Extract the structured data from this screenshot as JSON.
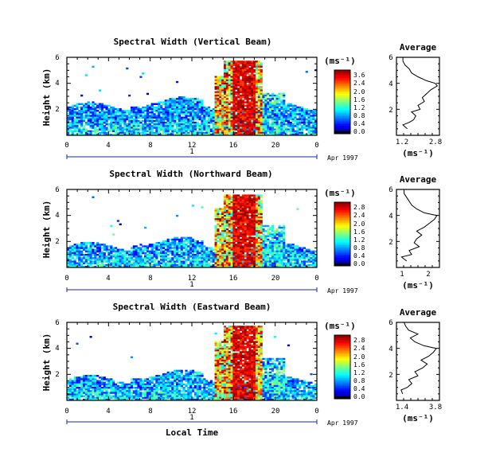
{
  "chart_data": [
    {
      "type": "heatmap",
      "title": "Spectral Width (Vertical Beam)",
      "ylabel": "Height (km)",
      "xticks": [
        "0",
        "4",
        "8",
        "12",
        "16",
        "20",
        "0"
      ],
      "yticks": [
        "6",
        "4",
        "2"
      ],
      "xlim": [
        0,
        24
      ],
      "ylim": [
        0,
        6
      ],
      "date_index": "1",
      "date_label": "Apr 1997",
      "colorbar": {
        "unit": "(ms⁻¹)",
        "ticks": [
          "3.6",
          "2.4",
          "2.0",
          "1.6",
          "1.2",
          "0.8",
          "0.4",
          "0.0"
        ],
        "range": [
          0.0,
          3.6
        ]
      },
      "average": {
        "title": "Average",
        "xlabel": "(ms⁻¹)",
        "xticks": [
          "1.2",
          "2.8"
        ],
        "yticks": [
          "6",
          "4",
          "2"
        ],
        "xlim": [
          1.0,
          3.0
        ],
        "ylim": [
          0,
          6
        ],
        "profile": {
          "height": [
            0.5,
            0.8,
            1.0,
            1.2,
            1.5,
            1.8,
            2.0,
            2.3,
            2.6,
            2.9,
            3.2,
            3.5,
            3.8,
            4.0,
            4.2,
            4.5,
            4.8,
            5.1,
            5.4,
            5.7,
            6.0
          ],
          "value": [
            1.5,
            1.3,
            1.6,
            1.8,
            1.9,
            1.7,
            2.1,
            2.0,
            2.3,
            2.2,
            2.4,
            2.6,
            2.9,
            2.8,
            2.4,
            2.0,
            1.7,
            1.6,
            1.4,
            1.3,
            1.3
          ]
        }
      }
    },
    {
      "type": "heatmap",
      "title": "Spectral Width (Northward Beam)",
      "ylabel": "Height (km)",
      "xticks": [
        "0",
        "4",
        "8",
        "12",
        "16",
        "20",
        "0"
      ],
      "yticks": [
        "6",
        "4",
        "2"
      ],
      "xlim": [
        0,
        24
      ],
      "ylim": [
        0,
        6
      ],
      "date_index": "1",
      "date_label": "Apr 1997",
      "colorbar": {
        "unit": "(ms⁻¹)",
        "ticks": [
          "2.8",
          "2.4",
          "2.0",
          "1.6",
          "1.2",
          "0.8",
          "0.4",
          "0.0"
        ],
        "range": [
          0.0,
          2.8
        ]
      },
      "average": {
        "title": "Average",
        "xlabel": "(ms⁻¹)",
        "xticks": [
          "1",
          "2"
        ],
        "yticks": [
          "6",
          "4",
          "2"
        ],
        "xlim": [
          0.8,
          2.5
        ],
        "ylim": [
          0,
          6
        ],
        "profile": {
          "height": [
            0.5,
            0.8,
            1.0,
            1.3,
            1.6,
            1.9,
            2.2,
            2.5,
            2.8,
            3.1,
            3.4,
            3.7,
            4.0,
            4.2,
            4.5,
            4.8,
            5.1,
            5.4,
            5.7,
            6.0
          ],
          "value": [
            1.2,
            1.0,
            1.4,
            1.3,
            1.7,
            1.5,
            1.6,
            1.8,
            1.6,
            1.9,
            2.1,
            2.3,
            2.4,
            1.9,
            1.6,
            1.4,
            1.3,
            1.2,
            1.1,
            1.1
          ]
        }
      }
    },
    {
      "type": "heatmap",
      "title": "Spectral Width (Eastward Beam)",
      "ylabel": "Height (km)",
      "xlabel": "Local Time",
      "xticks": [
        "0",
        "4",
        "8",
        "12",
        "16",
        "20",
        "0"
      ],
      "yticks": [
        "6",
        "4",
        "2"
      ],
      "xlim": [
        0,
        24
      ],
      "ylim": [
        0,
        6
      ],
      "date_index": "1",
      "date_label": "Apr 1997",
      "colorbar": {
        "unit": "(ms⁻¹)",
        "ticks": [
          "2.8",
          "2.4",
          "2.0",
          "1.6",
          "1.2",
          "0.8",
          "0.4",
          "0.0"
        ],
        "range": [
          0.0,
          2.8
        ]
      },
      "average": {
        "title": "Average",
        "xlabel": "(ms⁻¹)",
        "xticks": [
          "1.4",
          "3.8"
        ],
        "yticks": [
          "6",
          "4",
          "2"
        ],
        "xlim": [
          1.2,
          4.0
        ],
        "ylim": [
          0,
          6
        ],
        "profile": {
          "height": [
            0.5,
            0.8,
            1.0,
            1.3,
            1.6,
            1.9,
            2.2,
            2.5,
            2.8,
            3.1,
            3.4,
            3.7,
            4.0,
            4.2,
            4.5,
            4.8,
            5.1,
            5.4,
            5.7,
            6.0
          ],
          "value": [
            1.6,
            1.5,
            1.9,
            2.2,
            2.0,
            2.6,
            2.4,
            2.9,
            3.2,
            2.8,
            3.3,
            3.6,
            3.8,
            3.0,
            2.4,
            2.1,
            2.6,
            2.0,
            1.8,
            1.7
          ]
        }
      }
    }
  ]
}
